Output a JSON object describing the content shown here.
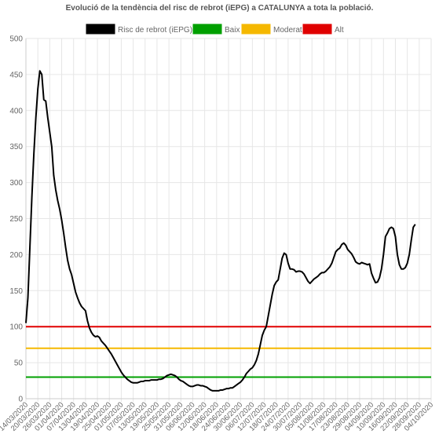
{
  "chart_data": {
    "type": "line",
    "title": "Evolució de la tendència del risc de rebrot (iEPG) a CATALUNYA a tota la població.",
    "ylim": [
      0,
      500
    ],
    "y_ticks": [
      "0",
      "50",
      "100",
      "150",
      "200",
      "250",
      "300",
      "350",
      "400",
      "450",
      "500"
    ],
    "grid": true,
    "legend_position": "top",
    "legend": [
      {
        "label": "Risc de rebrot (iEPG)",
        "color": "#000000"
      },
      {
        "label": "Baix",
        "color": "#00a000"
      },
      {
        "label": "Moderat",
        "color": "#f5b800"
      },
      {
        "label": "Alt",
        "color": "#e00000"
      }
    ],
    "x_tick_labels": [
      "14/03/2020",
      "20/03/2020",
      "26/03/2020",
      "01/04/2020",
      "07/04/2020",
      "13/04/2020",
      "19/04/2020",
      "25/04/2020",
      "01/05/2020",
      "07/05/2020",
      "13/05/2020",
      "19/05/2020",
      "25/05/2020",
      "31/05/2020",
      "06/06/2020",
      "12/06/2020",
      "18/06/2020",
      "24/06/2020",
      "30/06/2020",
      "06/07/2020",
      "12/07/2020",
      "18/07/2020",
      "24/07/2020",
      "30/07/2020",
      "05/08/2020",
      "11/08/2020",
      "17/08/2020",
      "23/08/2020",
      "29/08/2020",
      "04/09/2020",
      "10/09/2020",
      "16/09/2020",
      "22/09/2020",
      "28/09/2020",
      "04/10/2020"
    ],
    "x_start": "2020-03-14",
    "x_end": "2020-10-04",
    "series": [
      {
        "name": "Risc de rebrot (iEPG)",
        "color": "#000000",
        "points": [
          [
            "2020-03-14",
            105
          ],
          [
            "2020-03-15",
            140
          ],
          [
            "2020-03-16",
            210
          ],
          [
            "2020-03-17",
            280
          ],
          [
            "2020-03-18",
            340
          ],
          [
            "2020-03-19",
            390
          ],
          [
            "2020-03-20",
            430
          ],
          [
            "2020-03-21",
            455
          ],
          [
            "2020-03-22",
            450
          ],
          [
            "2020-03-23",
            415
          ],
          [
            "2020-03-24",
            413
          ],
          [
            "2020-03-25",
            390
          ],
          [
            "2020-03-26",
            370
          ],
          [
            "2020-03-27",
            350
          ],
          [
            "2020-03-28",
            310
          ],
          [
            "2020-03-29",
            290
          ],
          [
            "2020-03-30",
            275
          ],
          [
            "2020-03-31",
            263
          ],
          [
            "2020-04-01",
            248
          ],
          [
            "2020-04-02",
            230
          ],
          [
            "2020-04-03",
            210
          ],
          [
            "2020-04-04",
            192
          ],
          [
            "2020-04-05",
            180
          ],
          [
            "2020-04-06",
            172
          ],
          [
            "2020-04-07",
            160
          ],
          [
            "2020-04-08",
            148
          ],
          [
            "2020-04-09",
            140
          ],
          [
            "2020-04-10",
            133
          ],
          [
            "2020-04-11",
            128
          ],
          [
            "2020-04-12",
            125
          ],
          [
            "2020-04-13",
            122
          ],
          [
            "2020-04-14",
            108
          ],
          [
            "2020-04-15",
            98
          ],
          [
            "2020-04-16",
            92
          ],
          [
            "2020-04-17",
            88
          ],
          [
            "2020-04-18",
            86
          ],
          [
            "2020-04-19",
            87
          ],
          [
            "2020-04-20",
            85
          ],
          [
            "2020-04-21",
            80
          ],
          [
            "2020-04-22",
            77
          ],
          [
            "2020-04-23",
            74
          ],
          [
            "2020-04-24",
            70
          ],
          [
            "2020-04-25",
            66
          ],
          [
            "2020-04-26",
            62
          ],
          [
            "2020-04-27",
            57
          ],
          [
            "2020-04-28",
            52
          ],
          [
            "2020-04-29",
            47
          ],
          [
            "2020-04-30",
            42
          ],
          [
            "2020-05-01",
            37
          ],
          [
            "2020-05-02",
            33
          ],
          [
            "2020-05-03",
            30
          ],
          [
            "2020-05-04",
            27
          ],
          [
            "2020-05-05",
            25
          ],
          [
            "2020-05-06",
            23
          ],
          [
            "2020-05-07",
            22
          ],
          [
            "2020-05-08",
            22
          ],
          [
            "2020-05-09",
            22
          ],
          [
            "2020-05-10",
            23
          ],
          [
            "2020-05-11",
            24
          ],
          [
            "2020-05-12",
            24
          ],
          [
            "2020-05-13",
            25
          ],
          [
            "2020-05-14",
            25
          ],
          [
            "2020-05-15",
            25
          ],
          [
            "2020-05-16",
            26
          ],
          [
            "2020-05-17",
            26
          ],
          [
            "2020-05-18",
            26
          ],
          [
            "2020-05-19",
            26
          ],
          [
            "2020-05-20",
            27
          ],
          [
            "2020-05-21",
            27
          ],
          [
            "2020-05-22",
            28
          ],
          [
            "2020-05-23",
            30
          ],
          [
            "2020-05-24",
            32
          ],
          [
            "2020-05-25",
            33
          ],
          [
            "2020-05-26",
            34
          ],
          [
            "2020-05-27",
            33
          ],
          [
            "2020-05-28",
            32
          ],
          [
            "2020-05-29",
            30
          ],
          [
            "2020-05-30",
            27
          ],
          [
            "2020-05-31",
            25
          ],
          [
            "2020-06-01",
            24
          ],
          [
            "2020-06-02",
            22
          ],
          [
            "2020-06-03",
            20
          ],
          [
            "2020-06-04",
            18
          ],
          [
            "2020-06-05",
            17
          ],
          [
            "2020-06-06",
            17
          ],
          [
            "2020-06-07",
            18
          ],
          [
            "2020-06-08",
            19
          ],
          [
            "2020-06-09",
            19
          ],
          [
            "2020-06-10",
            18
          ],
          [
            "2020-06-11",
            18
          ],
          [
            "2020-06-12",
            17
          ],
          [
            "2020-06-13",
            16
          ],
          [
            "2020-06-14",
            14
          ],
          [
            "2020-06-15",
            12
          ],
          [
            "2020-06-16",
            11
          ],
          [
            "2020-06-17",
            11
          ],
          [
            "2020-06-18",
            11
          ],
          [
            "2020-06-19",
            11
          ],
          [
            "2020-06-20",
            12
          ],
          [
            "2020-06-21",
            12
          ],
          [
            "2020-06-22",
            13
          ],
          [
            "2020-06-23",
            14
          ],
          [
            "2020-06-24",
            14
          ],
          [
            "2020-06-25",
            15
          ],
          [
            "2020-06-26",
            15
          ],
          [
            "2020-06-27",
            17
          ],
          [
            "2020-06-28",
            19
          ],
          [
            "2020-06-29",
            21
          ],
          [
            "2020-06-30",
            23
          ],
          [
            "2020-07-01",
            26
          ],
          [
            "2020-07-02",
            30
          ],
          [
            "2020-07-03",
            35
          ],
          [
            "2020-07-04",
            38
          ],
          [
            "2020-07-05",
            41
          ],
          [
            "2020-07-06",
            43
          ],
          [
            "2020-07-07",
            47
          ],
          [
            "2020-07-08",
            53
          ],
          [
            "2020-07-09",
            62
          ],
          [
            "2020-07-10",
            75
          ],
          [
            "2020-07-11",
            88
          ],
          [
            "2020-07-12",
            95
          ],
          [
            "2020-07-13",
            100
          ],
          [
            "2020-07-14",
            115
          ],
          [
            "2020-07-15",
            130
          ],
          [
            "2020-07-16",
            145
          ],
          [
            "2020-07-17",
            157
          ],
          [
            "2020-07-18",
            162
          ],
          [
            "2020-07-19",
            165
          ],
          [
            "2020-07-20",
            180
          ],
          [
            "2020-07-21",
            195
          ],
          [
            "2020-07-22",
            202
          ],
          [
            "2020-07-23",
            200
          ],
          [
            "2020-07-24",
            188
          ],
          [
            "2020-07-25",
            180
          ],
          [
            "2020-07-26",
            180
          ],
          [
            "2020-07-27",
            179
          ],
          [
            "2020-07-28",
            176
          ],
          [
            "2020-07-29",
            177
          ],
          [
            "2020-07-30",
            177
          ],
          [
            "2020-07-31",
            176
          ],
          [
            "2020-08-01",
            173
          ],
          [
            "2020-08-02",
            168
          ],
          [
            "2020-08-03",
            163
          ],
          [
            "2020-08-04",
            160
          ],
          [
            "2020-08-05",
            163
          ],
          [
            "2020-08-06",
            166
          ],
          [
            "2020-08-07",
            168
          ],
          [
            "2020-08-08",
            170
          ],
          [
            "2020-08-09",
            173
          ],
          [
            "2020-08-10",
            175
          ],
          [
            "2020-08-11",
            175
          ],
          [
            "2020-08-12",
            177
          ],
          [
            "2020-08-13",
            180
          ],
          [
            "2020-08-14",
            183
          ],
          [
            "2020-08-15",
            188
          ],
          [
            "2020-08-16",
            196
          ],
          [
            "2020-08-17",
            204
          ],
          [
            "2020-08-18",
            207
          ],
          [
            "2020-08-19",
            209
          ],
          [
            "2020-08-20",
            214
          ],
          [
            "2020-08-21",
            216
          ],
          [
            "2020-08-22",
            213
          ],
          [
            "2020-08-23",
            207
          ],
          [
            "2020-08-24",
            204
          ],
          [
            "2020-08-25",
            201
          ],
          [
            "2020-08-26",
            196
          ],
          [
            "2020-08-27",
            190
          ],
          [
            "2020-08-28",
            188
          ],
          [
            "2020-08-29",
            187
          ],
          [
            "2020-08-30",
            189
          ],
          [
            "2020-08-31",
            188
          ],
          [
            "2020-09-01",
            187
          ],
          [
            "2020-09-02",
            186
          ],
          [
            "2020-09-03",
            187
          ],
          [
            "2020-09-04",
            174
          ],
          [
            "2020-09-05",
            167
          ],
          [
            "2020-09-06",
            161
          ],
          [
            "2020-09-07",
            162
          ],
          [
            "2020-09-08",
            168
          ],
          [
            "2020-09-09",
            180
          ],
          [
            "2020-09-10",
            200
          ],
          [
            "2020-09-11",
            225
          ],
          [
            "2020-09-12",
            230
          ],
          [
            "2020-09-13",
            236
          ],
          [
            "2020-09-14",
            238
          ],
          [
            "2020-09-15",
            236
          ],
          [
            "2020-09-16",
            225
          ],
          [
            "2020-09-17",
            200
          ],
          [
            "2020-09-18",
            186
          ],
          [
            "2020-09-19",
            180
          ],
          [
            "2020-09-20",
            180
          ],
          [
            "2020-09-21",
            182
          ],
          [
            "2020-09-22",
            188
          ],
          [
            "2020-09-23",
            200
          ],
          [
            "2020-09-24",
            220
          ],
          [
            "2020-09-25",
            238
          ],
          [
            "2020-09-26",
            242
          ]
        ]
      },
      {
        "name": "Baix",
        "color": "#00a000",
        "points": [
          [
            "2020-03-14",
            30
          ],
          [
            "2020-10-04",
            30
          ]
        ]
      },
      {
        "name": "Moderat",
        "color": "#f5b800",
        "points": [
          [
            "2020-03-14",
            70
          ],
          [
            "2020-10-04",
            70
          ]
        ]
      },
      {
        "name": "Alt",
        "color": "#e00000",
        "points": [
          [
            "2020-03-14",
            100
          ],
          [
            "2020-10-04",
            100
          ]
        ]
      }
    ]
  }
}
